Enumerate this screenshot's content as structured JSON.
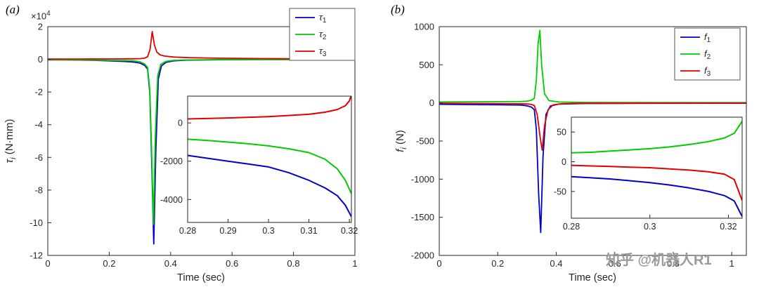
{
  "watermark": "知乎 @机器人R1",
  "colors": {
    "line1": "#0000C8",
    "line2": "#00CC00",
    "line3": "#E00000",
    "axis": "#262626"
  },
  "panels": [
    {
      "tag": "(a)",
      "xlabel": "Time (sec)",
      "ylabel_base": "τ",
      "ylabel_sub": "i",
      "ylabel_rest": " (N·mm)",
      "exp_base": "×10",
      "exp_sup": "4"
    },
    {
      "tag": "(b)",
      "xlabel": "Time (sec)",
      "ylabel_base": "f",
      "ylabel_sub": "i",
      "ylabel_rest": " (N)"
    }
  ],
  "chart_data": [
    {
      "type": "line",
      "panel": "a",
      "role": "main",
      "title": "",
      "xlabel": "Time (sec)",
      "ylabel": "tau_i (N·mm), ×10^4",
      "xlim": [
        0,
        1
      ],
      "ylim": [
        -120000,
        20000
      ],
      "grid": false,
      "legend": "upper right",
      "xticks": {
        "values": [
          0,
          0.2,
          0.4,
          0.6,
          0.8,
          1
        ],
        "labels": [
          "0",
          "0.2",
          "0.4",
          "0.6",
          "0.8",
          "1"
        ]
      },
      "yticks": {
        "values": [
          20000,
          0,
          -20000,
          -40000,
          -60000,
          -80000,
          -100000,
          -120000
        ],
        "labels": [
          "2",
          "0",
          "-2",
          "-4",
          "-6",
          "-8",
          "-10",
          "-12"
        ]
      },
      "series": [
        {
          "name_base": "τ",
          "name_sub": "1",
          "color": "#0000C8",
          "x": [
            0,
            0.05,
            0.1,
            0.15,
            0.2,
            0.25,
            0.28,
            0.3,
            0.315,
            0.325,
            0.332,
            0.338,
            0.345,
            0.352,
            0.36,
            0.37,
            0.385,
            0.41,
            0.45,
            0.55,
            0.7,
            0.85,
            1
          ],
          "y": [
            -300,
            -350,
            -450,
            -600,
            -900,
            -1300,
            -1700,
            -2300,
            -3600,
            -6000,
            -20000,
            -60000,
            -113000,
            -55000,
            -12000,
            -4000,
            -1800,
            -900,
            -500,
            -250,
            -150,
            -100,
            -80
          ]
        },
        {
          "name_base": "τ",
          "name_sub": "2",
          "color": "#00CC00",
          "x": [
            0,
            0.05,
            0.1,
            0.15,
            0.2,
            0.25,
            0.28,
            0.3,
            0.315,
            0.325,
            0.332,
            0.338,
            0.344,
            0.35,
            0.358,
            0.368,
            0.385,
            0.41,
            0.45,
            0.55,
            0.7,
            0.85,
            1
          ],
          "y": [
            -200,
            -250,
            -300,
            -450,
            -600,
            -750,
            -850,
            -1500,
            -2800,
            -5000,
            -18000,
            -55000,
            -101000,
            -48000,
            -10000,
            -3000,
            -1200,
            -600,
            -350,
            -200,
            -120,
            -90,
            -70
          ]
        },
        {
          "name_base": "τ",
          "name_sub": "3",
          "color": "#E00000",
          "x": [
            0,
            0.1,
            0.2,
            0.28,
            0.3,
            0.315,
            0.325,
            0.333,
            0.34,
            0.347,
            0.355,
            0.365,
            0.38,
            0.41,
            0.46,
            0.55,
            0.7,
            0.85,
            1
          ],
          "y": [
            150,
            200,
            260,
            320,
            420,
            700,
            1600,
            6000,
            17000,
            9000,
            4500,
            2800,
            2000,
            1400,
            1000,
            700,
            450,
            300,
            220
          ]
        }
      ]
    },
    {
      "type": "line",
      "panel": "a",
      "role": "inset",
      "title": "",
      "xlim": [
        0.28,
        0.3205
      ],
      "ylim": [
        -5200,
        1400
      ],
      "grid": false,
      "legend": null,
      "xticks": {
        "values": [
          0.28,
          0.29,
          0.3,
          0.31,
          0.32
        ],
        "labels": [
          "0.28",
          "0.29",
          "0.3",
          "0.31",
          "0.32"
        ]
      },
      "yticks": {
        "values": [
          0,
          -2000,
          -4000
        ],
        "labels": [
          "0",
          "-2000",
          "-4000"
        ]
      },
      "series": [
        {
          "name_base": "τ",
          "name_sub": "1",
          "color": "#0000C8",
          "x": [
            0.28,
            0.285,
            0.29,
            0.295,
            0.3,
            0.305,
            0.31,
            0.314,
            0.317,
            0.319,
            0.3205
          ],
          "y": [
            -1700,
            -1850,
            -2000,
            -2150,
            -2300,
            -2600,
            -3000,
            -3400,
            -3800,
            -4300,
            -4900
          ]
        },
        {
          "name_base": "τ",
          "name_sub": "2",
          "color": "#00CC00",
          "x": [
            0.28,
            0.285,
            0.29,
            0.295,
            0.3,
            0.305,
            0.31,
            0.314,
            0.317,
            0.319,
            0.3205
          ],
          "y": [
            -850,
            -920,
            -1000,
            -1090,
            -1200,
            -1350,
            -1550,
            -1900,
            -2400,
            -3000,
            -3700
          ]
        },
        {
          "name_base": "τ",
          "name_sub": "3",
          "color": "#E00000",
          "x": [
            0.28,
            0.29,
            0.3,
            0.31,
            0.314,
            0.317,
            0.319,
            0.32,
            0.3205
          ],
          "y": [
            210,
            260,
            330,
            450,
            560,
            700,
            900,
            1150,
            1450
          ]
        }
      ]
    },
    {
      "type": "line",
      "panel": "b",
      "role": "main",
      "title": "",
      "xlabel": "Time (sec)",
      "ylabel": "f_i (N)",
      "xlim": [
        0,
        1.05
      ],
      "ylim": [
        -2000,
        1000
      ],
      "grid": false,
      "legend": "upper right",
      "xticks": {
        "values": [
          0,
          0.2,
          0.4,
          0.6,
          0.8,
          1
        ],
        "labels": [
          "0",
          "0.2",
          "0.4",
          "0.6",
          "0.8",
          "1"
        ]
      },
      "yticks": {
        "values": [
          1000,
          500,
          0,
          -500,
          -1000,
          -1500,
          -2000
        ],
        "labels": [
          "1000",
          "500",
          "0",
          "-500",
          "-1000",
          "-1500",
          "-2000"
        ]
      },
      "series": [
        {
          "name_base": "f",
          "name_sub": "1",
          "color": "#0000C8",
          "x": [
            0,
            0.1,
            0.2,
            0.28,
            0.3,
            0.315,
            0.325,
            0.332,
            0.34,
            0.347,
            0.355,
            0.365,
            0.38,
            0.41,
            0.5,
            0.7,
            1.05
          ],
          "y": [
            -18,
            -22,
            -25,
            -28,
            -38,
            -55,
            -90,
            -350,
            -1200,
            -1700,
            -700,
            -150,
            -40,
            -15,
            -8,
            -5,
            -4
          ]
        },
        {
          "name_base": "f",
          "name_sub": "2",
          "color": "#00CC00",
          "x": [
            0,
            0.1,
            0.2,
            0.28,
            0.3,
            0.315,
            0.325,
            0.332,
            0.338,
            0.344,
            0.35,
            0.36,
            0.375,
            0.41,
            0.5,
            0.7,
            1.05
          ],
          "y": [
            12,
            14,
            16,
            18,
            24,
            35,
            60,
            300,
            780,
            950,
            500,
            120,
            30,
            12,
            6,
            4,
            3
          ]
        },
        {
          "name_base": "f",
          "name_sub": "3",
          "color": "#E00000",
          "x": [
            0,
            0.1,
            0.2,
            0.28,
            0.3,
            0.315,
            0.325,
            0.335,
            0.345,
            0.352,
            0.36,
            0.372,
            0.39,
            0.42,
            0.5,
            0.7,
            1.05
          ],
          "y": [
            -5,
            -7,
            -9,
            -11,
            -14,
            -20,
            -35,
            -150,
            -450,
            -620,
            -300,
            -90,
            -25,
            -10,
            -5,
            -3,
            -2
          ]
        }
      ]
    },
    {
      "type": "line",
      "panel": "b",
      "role": "inset",
      "title": "",
      "xlim": [
        0.28,
        0.3235
      ],
      "ylim": [
        -95,
        75
      ],
      "grid": false,
      "legend": null,
      "xticks": {
        "values": [
          0.28,
          0.3,
          0.32
        ],
        "labels": [
          "0.28",
          "0.3",
          "0.32"
        ]
      },
      "yticks": {
        "values": [
          50,
          0,
          -50
        ],
        "labels": [
          "50",
          "0",
          "-50"
        ]
      },
      "series": [
        {
          "name_base": "f",
          "name_sub": "1",
          "color": "#0000C8",
          "x": [
            0.28,
            0.285,
            0.29,
            0.295,
            0.3,
            0.305,
            0.31,
            0.315,
            0.319,
            0.3215,
            0.3235
          ],
          "y": [
            -25,
            -27,
            -29,
            -32,
            -35,
            -39,
            -44,
            -50,
            -57,
            -66,
            -92
          ]
        },
        {
          "name_base": "f",
          "name_sub": "2",
          "color": "#00CC00",
          "x": [
            0.28,
            0.285,
            0.29,
            0.295,
            0.3,
            0.305,
            0.31,
            0.315,
            0.319,
            0.3215,
            0.3235
          ],
          "y": [
            15,
            16,
            18,
            20,
            22,
            25,
            29,
            34,
            40,
            48,
            68
          ]
        },
        {
          "name_base": "f",
          "name_sub": "3",
          "color": "#E00000",
          "x": [
            0.28,
            0.285,
            0.29,
            0.295,
            0.3,
            0.305,
            0.31,
            0.315,
            0.319,
            0.3215,
            0.3235
          ],
          "y": [
            -6,
            -7,
            -8,
            -9,
            -10,
            -12,
            -14,
            -17,
            -21,
            -30,
            -65
          ]
        }
      ]
    }
  ]
}
